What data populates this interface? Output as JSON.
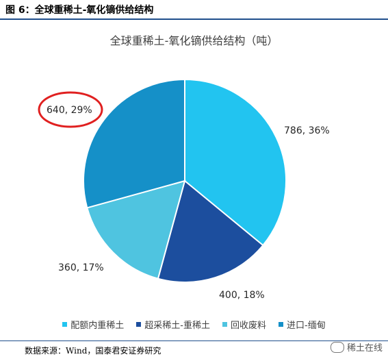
{
  "figure_label": "图 6：全球重稀土-氧化镝供给结构",
  "source": "数据来源：Wind，国泰君安证券研究",
  "watermark": "稀土在线",
  "colors": {
    "header_rule": "#1f4e8c",
    "highlight_circle": "#e02020"
  },
  "chart_data": {
    "type": "pie",
    "title": "全球重稀土-氧化镝供给结构（吨）",
    "legend_position": "bottom",
    "categories": [
      "配额内重稀土",
      "超采稀土-重稀土",
      "回收废料",
      "进口-缅甸"
    ],
    "values": [
      786,
      400,
      360,
      640
    ],
    "percents": [
      "36%",
      "18%",
      "17%",
      "29%"
    ],
    "data_labels": [
      "786, 36%",
      "400, 18%",
      "360, 17%",
      "640, 29%"
    ],
    "colors": [
      "#22c4f0",
      "#1c4e9e",
      "#4fc4e0",
      "#1590c8"
    ],
    "highlighted_label": "640, 29%"
  }
}
